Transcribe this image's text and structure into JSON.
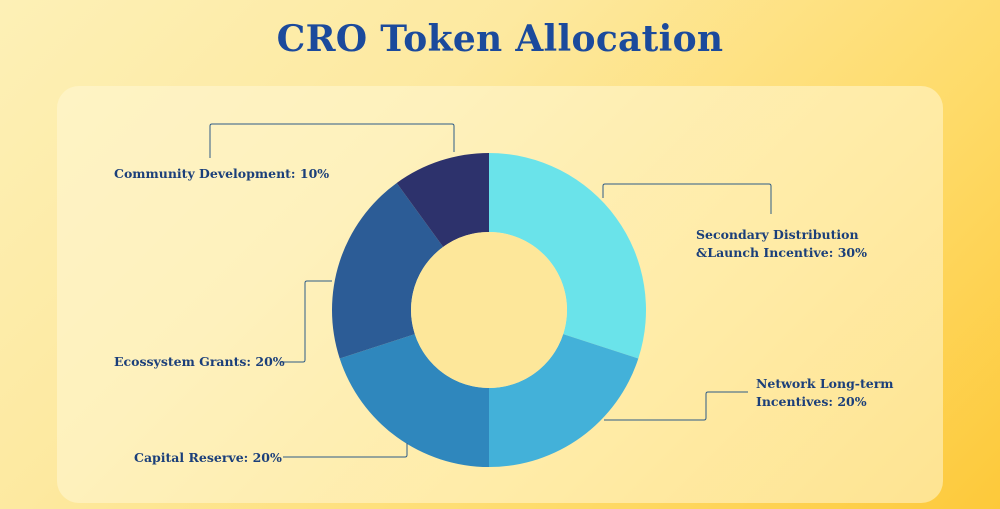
{
  "title": "CRO Token Allocation",
  "chart_data": {
    "type": "pie",
    "donut": true,
    "title": "CRO Token Allocation",
    "slices": [
      {
        "label_lines": [
          "Secondary Distribution",
          "&Launch Incentive: 30%"
        ],
        "value": 30,
        "color": "#6ae3ea"
      },
      {
        "label_lines": [
          "Network Long-term",
          "Incentives: 20%"
        ],
        "value": 20,
        "color": "#43b1d9"
      },
      {
        "label_lines": [
          "Capital Reserve: 20%"
        ],
        "value": 20,
        "color": "#2f87bd"
      },
      {
        "label_lines": [
          "Ecossystem Grants: 20%"
        ],
        "value": 20,
        "color": "#2c5c96"
      },
      {
        "label_lines": [
          "Community Development: 10%"
        ],
        "value": 10,
        "color": "#2d326c"
      }
    ]
  }
}
